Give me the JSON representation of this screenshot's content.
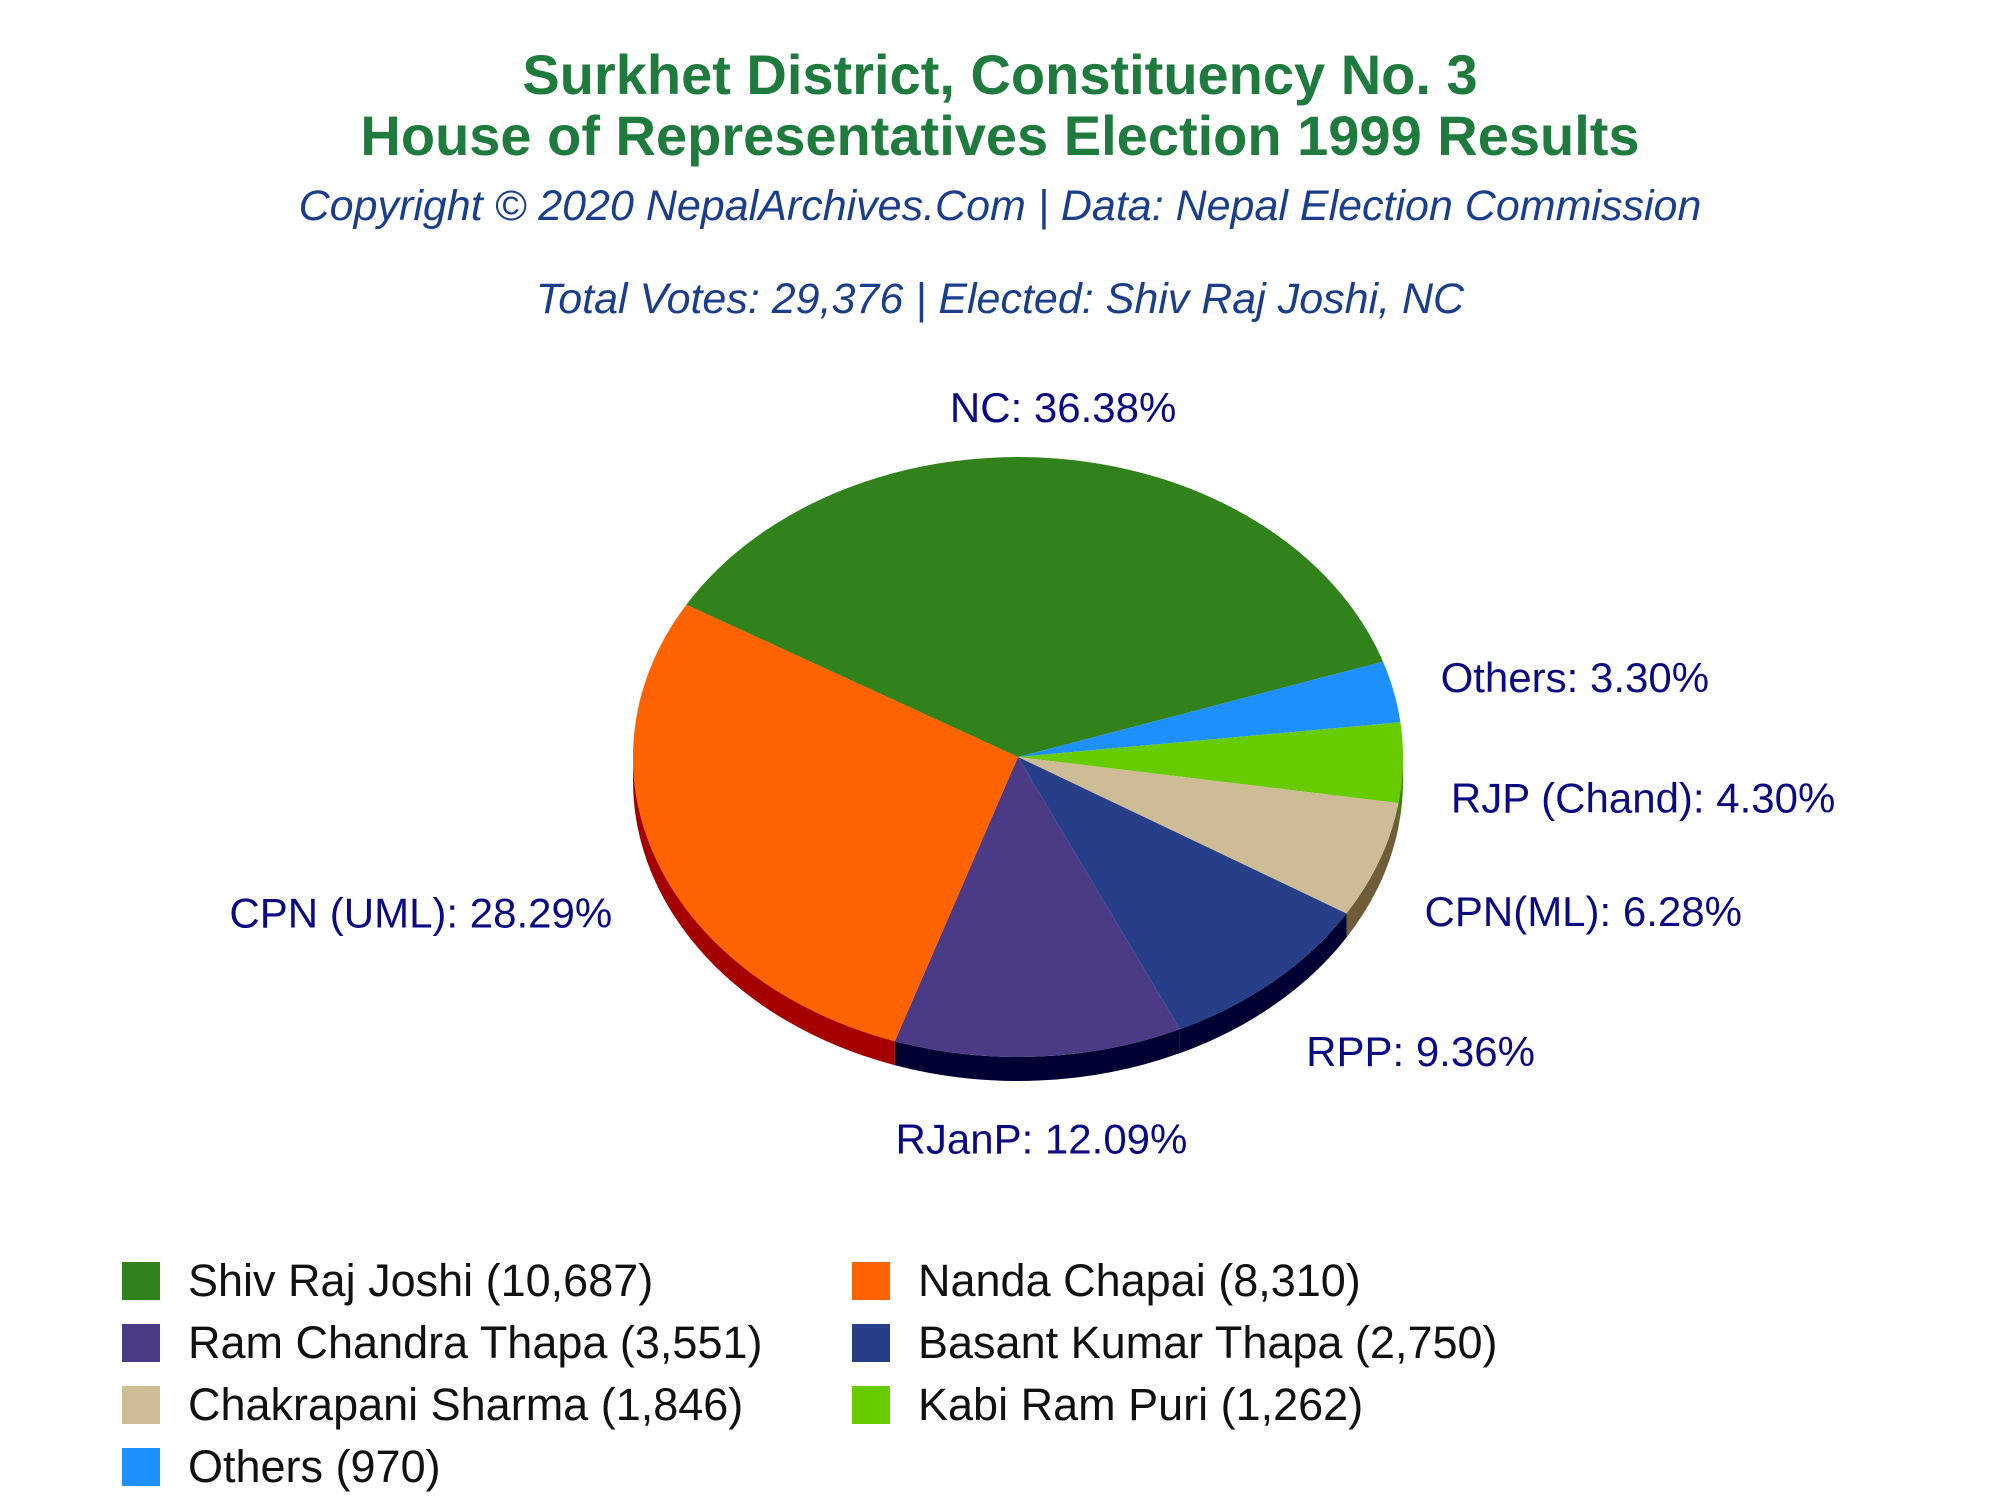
{
  "header": {
    "title_line1": "Surkhet District, Constituency No. 3",
    "title_line2": "House of Representatives Election 1999 Results",
    "copyright": "Copyright © 2020 NepalArchives.Com | Data: Nepal Election Commission",
    "summary": "Total Votes: 29,376 | Elected: Shiv Raj Joshi, NC"
  },
  "chart_data": {
    "type": "pie",
    "total_votes": 29376,
    "slices": [
      {
        "party": "NC",
        "label": "NC: 36.38%",
        "percent": 36.38,
        "candidate": "Shiv Raj Joshi",
        "votes": 10687,
        "legend": "Shiv Raj Joshi (10,687)",
        "color": "#31821b",
        "side_color": "#1e5410"
      },
      {
        "party": "Others",
        "label": "Others: 3.30%",
        "percent": 3.3,
        "candidate": "Others",
        "votes": 970,
        "legend": "Others (970)",
        "color": "#1e90ff",
        "side_color": "#0d5cb0"
      },
      {
        "party": "RJP (Chand)",
        "label": "RJP (Chand): 4.30%",
        "percent": 4.3,
        "candidate": "Kabi Ram Puri",
        "votes": 1262,
        "legend": "Kabi Ram Puri (1,262)",
        "color": "#66cc00",
        "side_color": "#3d8000"
      },
      {
        "party": "CPN(ML)",
        "label": "CPN(ML): 6.28%",
        "percent": 6.28,
        "candidate": "Chakrapani Sharma",
        "votes": 1846,
        "legend": "Chakrapani Sharma (1,846)",
        "color": "#cdbc96",
        "side_color": "#6e5d38"
      },
      {
        "party": "RPP",
        "label": "RPP: 9.36%",
        "percent": 9.36,
        "candidate": "Basant Kumar Thapa",
        "votes": 2750,
        "legend": "Basant Kumar Thapa (2,750)",
        "color": "#263f88",
        "side_color": "#000033"
      },
      {
        "party": "RJanP",
        "label": "RJanP: 12.09%",
        "percent": 12.09,
        "candidate": "Ram Chandra Thapa",
        "votes": 3551,
        "legend": "Ram Chandra Thapa (3,551)",
        "color": "#4b3b86",
        "side_color": "#000033"
      },
      {
        "party": "CPN (UML)",
        "label": "CPN (UML): 28.29%",
        "percent": 28.29,
        "candidate": "Nanda Chapai",
        "votes": 8310,
        "legend": "Nanda Chapai (8,310)",
        "color": "#ff6200",
        "side_color": "#a50000"
      }
    ],
    "legend_order": [
      "NC",
      "CPN (UML)",
      "RJanP",
      "RPP",
      "CPN(ML)",
      "RJP (Chand)",
      "Others"
    ],
    "legend_placement": "bottom"
  }
}
